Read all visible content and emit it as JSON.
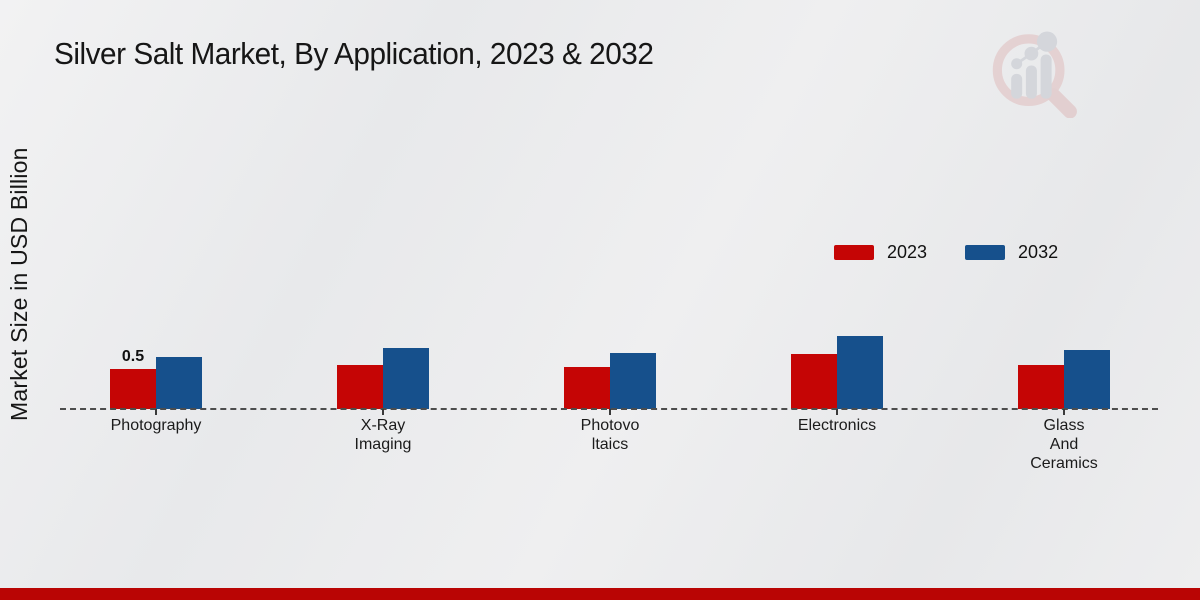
{
  "title": "Silver Salt Market, By Application, 2023 & 2032",
  "y_axis_label": "Market Size in USD Billion",
  "footer_band_color": "#b90504",
  "logo_name": "market-research-future-watermark",
  "chart_data": {
    "type": "bar",
    "title": "Silver Salt Market, By Application, 2023 & 2032",
    "xlabel": "",
    "ylabel": "Market Size in USD Billion",
    "ylim": [
      0,
      1
    ],
    "grid": false,
    "legend_position": "center-right",
    "categories": [
      "Photography",
      "X-Ray\nImaging",
      "Photovo\nltaics",
      "Electronics",
      "Glass\nAnd\nCeramics"
    ],
    "series": [
      {
        "name": "2023",
        "color": "#c50505",
        "values": [
          0.5,
          0.55,
          0.53,
          0.69,
          0.55
        ]
      },
      {
        "name": "2032",
        "color": "#16508c",
        "values": [
          0.65,
          0.76,
          0.7,
          0.91,
          0.74
        ]
      }
    ],
    "annotations": [
      {
        "series_index": 0,
        "category_index": 0,
        "text": "0.5"
      }
    ],
    "axis_line_style": "dashed",
    "axis_line_color": "#4d4d4d"
  }
}
